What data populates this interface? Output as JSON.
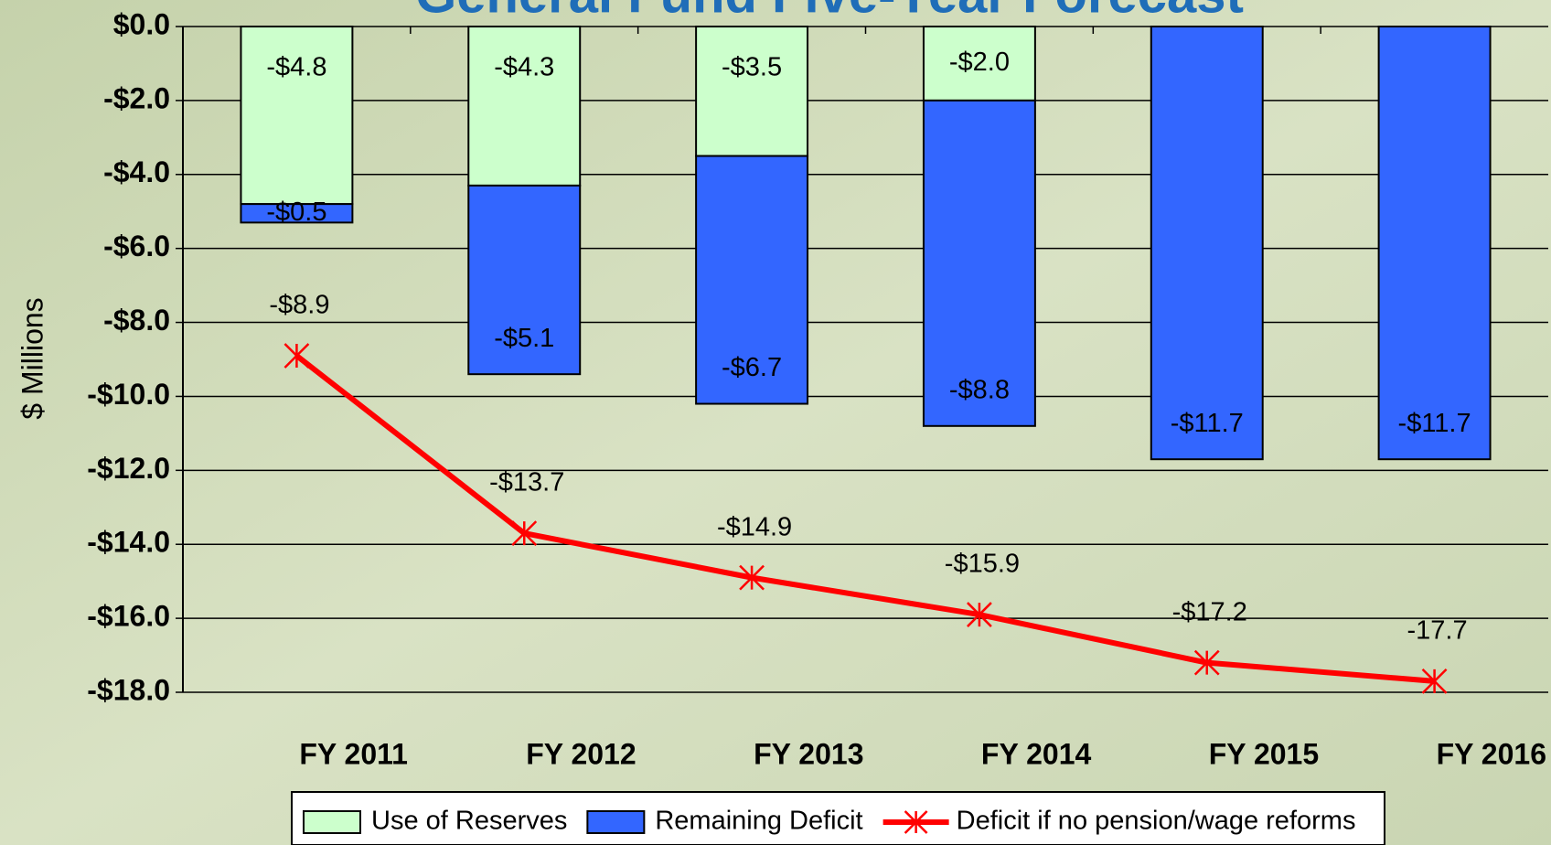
{
  "chart_data": {
    "type": "stacked-bar-line",
    "title": "General Fund Five-Year Forecast",
    "y_axis_label": "$ Millions",
    "categories": [
      "FY 2011",
      "FY 2012",
      "FY 2013",
      "FY 2014",
      "FY 2015",
      "FY 2016"
    ],
    "series": [
      {
        "name": "Use of Reserves",
        "type": "bar",
        "color": "#ccffcc",
        "values": [
          -4.8,
          -4.3,
          -3.5,
          -2.0,
          null,
          null
        ],
        "value_labels": [
          "-$4.8",
          "-$4.3",
          "-$3.5",
          "-$2.0",
          null,
          null
        ]
      },
      {
        "name": "Remaining Deficit",
        "type": "bar",
        "color": "#3366ff",
        "values": [
          -0.5,
          -5.1,
          -6.7,
          -8.8,
          -11.7,
          -11.7
        ],
        "value_labels": [
          "-$0.5",
          "-$5.1",
          "-$6.7",
          "-$8.8",
          "-$11.7",
          "-$11.7"
        ]
      },
      {
        "name": "Deficit if no pension/wage reforms",
        "type": "line",
        "color": "#ff0000",
        "values": [
          -8.9,
          -13.7,
          -14.9,
          -15.9,
          -17.2,
          -17.7
        ],
        "value_labels": [
          "-$8.9",
          "-$13.7",
          "-$14.9",
          "-$15.9",
          "-$17.2",
          "-17.7"
        ]
      }
    ],
    "ylim": [
      -18,
      0
    ],
    "yticks": [
      {
        "value": 0,
        "label": "$0.0"
      },
      {
        "value": -2,
        "label": "-$2.0"
      },
      {
        "value": -4,
        "label": "-$4.0"
      },
      {
        "value": -6,
        "label": "-$6.0"
      },
      {
        "value": -8,
        "label": "-$8.0"
      },
      {
        "value": -10,
        "label": "-$10.0"
      },
      {
        "value": -12,
        "label": "-$12.0"
      },
      {
        "value": -14,
        "label": "-$14.0"
      },
      {
        "value": -16,
        "label": "-$16.0"
      },
      {
        "value": -18,
        "label": "-$18.0"
      }
    ],
    "grid": true,
    "legend": "bottom"
  }
}
